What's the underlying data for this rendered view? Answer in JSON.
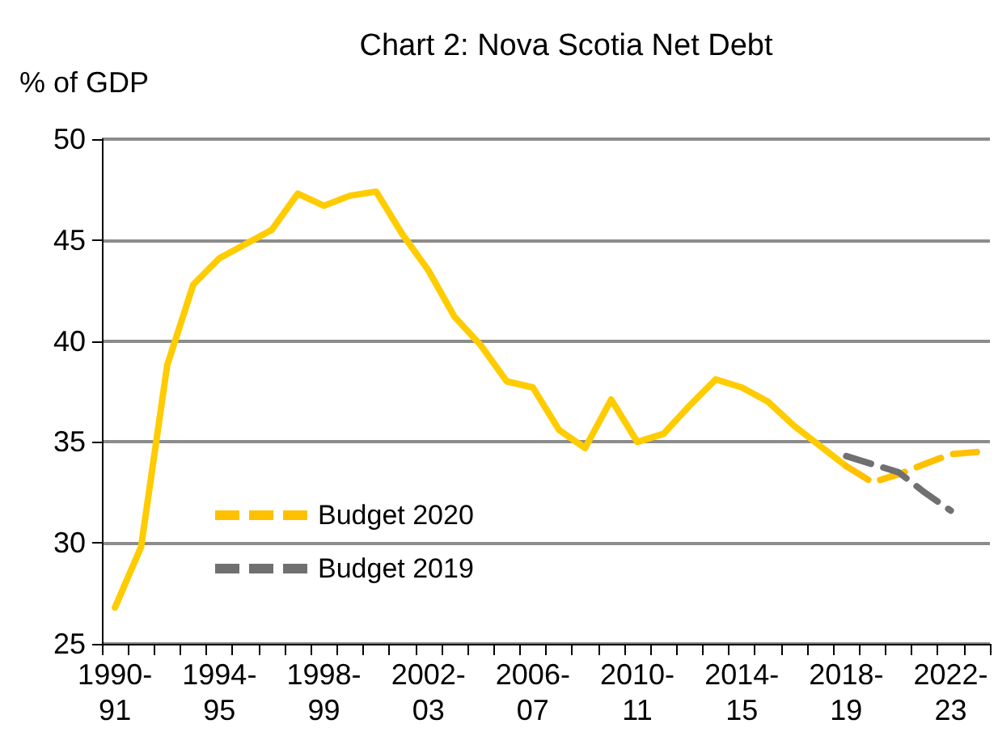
{
  "chart_data": {
    "type": "line",
    "title": "Chart 2: Nova Scotia Net Debt",
    "ylabel": "% of GDP",
    "categories": [
      "1990-91",
      null,
      null,
      null,
      "1994-95",
      null,
      null,
      null,
      "1998-99",
      null,
      null,
      null,
      "2002-03",
      null,
      null,
      null,
      "2006-07",
      null,
      null,
      null,
      "2010-11",
      null,
      null,
      null,
      "2014-15",
      null,
      null,
      null,
      "2018-19",
      null,
      null,
      null,
      "2022-23",
      null
    ],
    "series": [
      {
        "color": "#ffcc00",
        "line_style": "solid",
        "values": [
          26.8,
          29.8,
          38.8,
          42.8,
          44.1,
          44.8,
          45.5,
          47.3,
          46.7,
          47.2,
          47.4,
          45.3,
          43.5,
          41.2,
          39.8,
          38.0,
          37.7,
          35.6,
          34.7,
          37.1,
          35.0,
          35.4,
          36.8,
          38.1,
          37.7,
          37.0,
          35.8,
          34.8,
          33.8,
          null,
          null,
          null,
          null,
          null
        ]
      },
      {
        "name": "Budget 2020",
        "color": "#ffc000",
        "line_style": "dashed",
        "values": [
          null,
          null,
          null,
          null,
          null,
          null,
          null,
          null,
          null,
          null,
          null,
          null,
          null,
          null,
          null,
          null,
          null,
          null,
          null,
          null,
          null,
          null,
          null,
          null,
          null,
          null,
          null,
          null,
          33.8,
          33.0,
          33.4,
          33.9,
          34.4,
          34.5
        ]
      },
      {
        "name": "Budget 2019",
        "color": "#707070",
        "line_style": "dashed",
        "values": [
          null,
          null,
          null,
          null,
          null,
          null,
          null,
          null,
          null,
          null,
          null,
          null,
          null,
          null,
          null,
          null,
          null,
          null,
          null,
          null,
          null,
          null,
          null,
          null,
          null,
          null,
          null,
          null,
          34.3,
          33.9,
          33.5,
          32.5,
          31.6,
          null
        ]
      }
    ],
    "ylim": [
      25,
      50
    ],
    "yticks": [
      25,
      30,
      35,
      40,
      45,
      50
    ],
    "grid": "y",
    "legend": "bottom left",
    "marker": "none"
  }
}
